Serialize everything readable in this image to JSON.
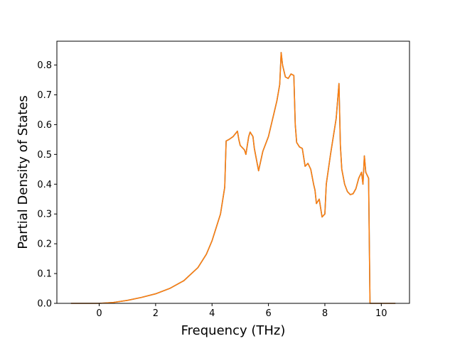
{
  "chart_data": {
    "type": "line",
    "title": "",
    "xlabel": "Frequency (THz)",
    "ylabel": "Partial Density of States",
    "xlim": [
      -1.5,
      11.0
    ],
    "ylim": [
      0.0,
      0.88
    ],
    "xticks": [
      0,
      2,
      4,
      6,
      8,
      10
    ],
    "yticks": [
      0.0,
      0.1,
      0.2,
      0.3,
      0.4,
      0.5,
      0.6,
      0.7,
      0.8
    ],
    "xtick_labels": [
      "0",
      "2",
      "4",
      "6",
      "8",
      "10"
    ],
    "ytick_labels": [
      "0.0",
      "0.1",
      "0.2",
      "0.3",
      "0.4",
      "0.5",
      "0.6",
      "0.7",
      "0.8"
    ],
    "grid": false,
    "legend": "none",
    "series": [
      {
        "color": "#1f77b4",
        "x": [
          -1.0,
          0.0,
          0.5,
          1.0,
          1.5,
          2.0,
          2.5,
          3.0,
          3.5,
          3.8,
          4.0,
          4.1,
          4.3,
          4.45,
          4.5,
          4.6,
          4.75,
          4.9,
          4.95,
          5.0,
          5.1,
          5.15,
          5.2,
          5.3,
          5.35,
          5.45,
          5.5,
          5.6,
          5.65,
          5.8,
          6.0,
          6.2,
          6.3,
          6.4,
          6.45,
          6.5,
          6.6,
          6.7,
          6.8,
          6.9,
          6.95,
          7.0,
          7.1,
          7.2,
          7.3,
          7.4,
          7.5,
          7.6,
          7.65,
          7.7,
          7.8,
          7.9,
          8.0,
          8.05,
          8.2,
          8.4,
          8.5,
          8.55,
          8.6,
          8.7,
          8.8,
          8.9,
          9.0,
          9.1,
          9.2,
          9.3,
          9.35,
          9.4,
          9.45,
          9.5,
          9.55,
          9.6,
          9.62,
          10.0,
          10.5
        ],
        "y": [
          0.0,
          0.0,
          0.003,
          0.01,
          0.02,
          0.032,
          0.05,
          0.076,
          0.12,
          0.165,
          0.21,
          0.24,
          0.3,
          0.39,
          0.545,
          0.55,
          0.56,
          0.578,
          0.55,
          0.53,
          0.52,
          0.515,
          0.5,
          0.56,
          0.575,
          0.56,
          0.52,
          0.47,
          0.445,
          0.51,
          0.56,
          0.64,
          0.68,
          0.735,
          0.842,
          0.8,
          0.76,
          0.755,
          0.77,
          0.765,
          0.6,
          0.54,
          0.525,
          0.52,
          0.46,
          0.47,
          0.45,
          0.4,
          0.38,
          0.335,
          0.35,
          0.29,
          0.3,
          0.4,
          0.5,
          0.62,
          0.738,
          0.53,
          0.45,
          0.4,
          0.375,
          0.365,
          0.368,
          0.385,
          0.42,
          0.44,
          0.4,
          0.495,
          0.44,
          0.43,
          0.42,
          0.0,
          0.0,
          0.0,
          0.0
        ]
      },
      {
        "color": "#ff7f0e",
        "x": [
          -1.0,
          0.0,
          0.5,
          1.0,
          1.5,
          2.0,
          2.5,
          3.0,
          3.5,
          3.8,
          4.0,
          4.1,
          4.3,
          4.45,
          4.5,
          4.6,
          4.75,
          4.9,
          4.95,
          5.0,
          5.1,
          5.15,
          5.2,
          5.3,
          5.35,
          5.45,
          5.5,
          5.6,
          5.65,
          5.8,
          6.0,
          6.2,
          6.3,
          6.4,
          6.45,
          6.5,
          6.6,
          6.7,
          6.8,
          6.9,
          6.95,
          7.0,
          7.1,
          7.2,
          7.3,
          7.4,
          7.5,
          7.6,
          7.65,
          7.7,
          7.8,
          7.9,
          8.0,
          8.05,
          8.2,
          8.4,
          8.5,
          8.55,
          8.6,
          8.7,
          8.8,
          8.9,
          9.0,
          9.1,
          9.2,
          9.3,
          9.35,
          9.4,
          9.45,
          9.5,
          9.55,
          9.6,
          9.62,
          10.0,
          10.5
        ],
        "y": [
          0.0,
          0.0,
          0.003,
          0.01,
          0.02,
          0.032,
          0.05,
          0.076,
          0.12,
          0.165,
          0.21,
          0.24,
          0.3,
          0.39,
          0.545,
          0.55,
          0.56,
          0.578,
          0.55,
          0.53,
          0.52,
          0.515,
          0.5,
          0.56,
          0.575,
          0.56,
          0.52,
          0.47,
          0.445,
          0.51,
          0.56,
          0.64,
          0.68,
          0.735,
          0.842,
          0.8,
          0.76,
          0.755,
          0.77,
          0.765,
          0.6,
          0.54,
          0.525,
          0.52,
          0.46,
          0.47,
          0.45,
          0.4,
          0.38,
          0.335,
          0.35,
          0.29,
          0.3,
          0.4,
          0.5,
          0.62,
          0.738,
          0.53,
          0.45,
          0.4,
          0.375,
          0.365,
          0.368,
          0.385,
          0.42,
          0.44,
          0.4,
          0.495,
          0.44,
          0.43,
          0.42,
          0.0,
          0.0,
          0.0,
          0.0
        ]
      }
    ]
  }
}
